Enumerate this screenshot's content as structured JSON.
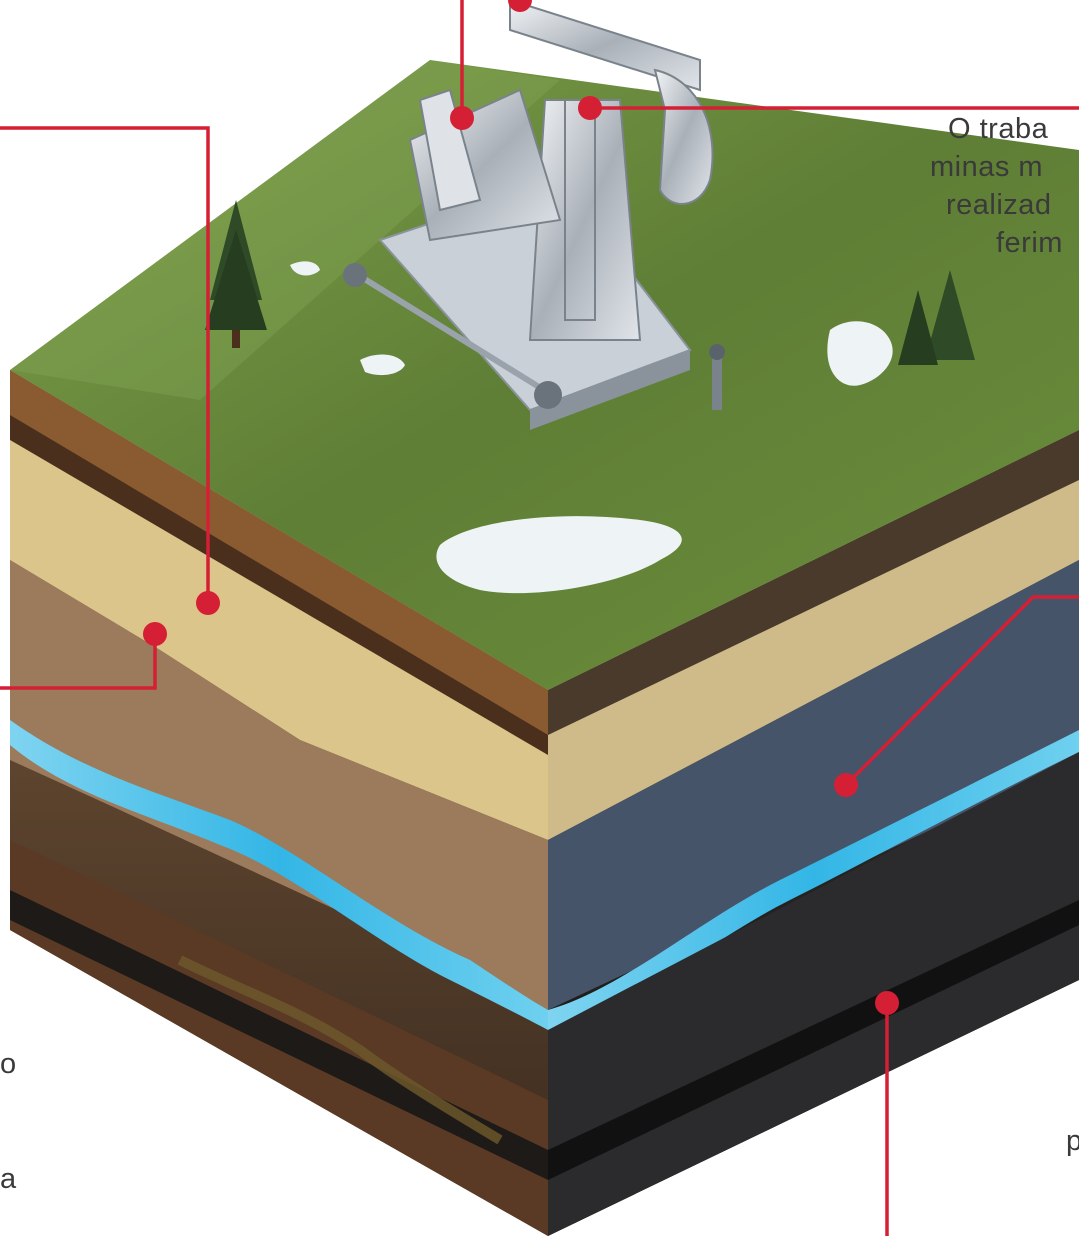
{
  "callout_right": {
    "lines": [
      "O traba",
      "minas m",
      "realizad",
      "ferim"
    ]
  },
  "fragments": {
    "left_1": "o",
    "left_2": "a",
    "right_1": "p"
  },
  "colors": {
    "callout_line": "#d51f35",
    "water": "#33b6e6",
    "grass": "#5f8a2c",
    "sand": "#dcc58a",
    "dark_rock": "#2b2a2c",
    "blue_rock": "#46546a"
  },
  "icons": [
    "pumpjack-icon",
    "pine-tree-icon",
    "snow-patch-icon"
  ]
}
